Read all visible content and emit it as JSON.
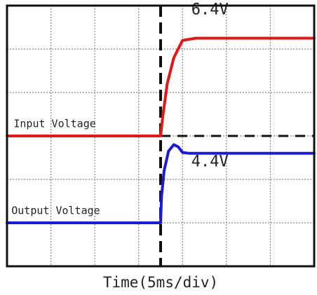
{
  "colors": {
    "input_trace": "#e01818",
    "output_trace": "#1a1ad8",
    "grid": "#888888",
    "frame": "#111111",
    "marker": "#111111",
    "background": "#ffffff"
  },
  "chart_data": {
    "type": "line",
    "title": "",
    "xlabel": "Time(5ms/div)",
    "ylabel": "",
    "grid": true,
    "x_divisions": 7,
    "y_divisions": 6,
    "x_unit": "div",
    "y_unit": "div",
    "xlim": [
      0,
      7
    ],
    "ylim": [
      0,
      6
    ],
    "series": [
      {
        "name": "Input Voltage",
        "color": "#e01818",
        "x": [
          0,
          3.5,
          3.55,
          3.65,
          3.8,
          4.0,
          4.3,
          7
        ],
        "y": [
          3.0,
          3.0,
          3.45,
          4.2,
          4.8,
          5.2,
          5.25,
          5.25
        ]
      },
      {
        "name": "Output Voltage",
        "color": "#1a1ad8",
        "x": [
          0,
          3.5,
          3.52,
          3.58,
          3.68,
          3.8,
          3.9,
          4.0,
          4.15,
          4.3,
          7
        ],
        "y": [
          1.0,
          1.0,
          1.6,
          2.2,
          2.65,
          2.8,
          2.75,
          2.62,
          2.6,
          2.6,
          2.6
        ]
      }
    ],
    "trigger_marker_x": 3.5,
    "reference_level_y": 3.0,
    "annotations": [
      {
        "text": "6.4V",
        "x": 4.2,
        "y": 5.8
      },
      {
        "text": "4.4V",
        "x": 4.2,
        "y": 2.3
      },
      {
        "text": "Input Voltage",
        "x": 0.15,
        "y": 3.2
      },
      {
        "text": "Output Voltage",
        "x": 0.1,
        "y": 1.2
      }
    ]
  }
}
